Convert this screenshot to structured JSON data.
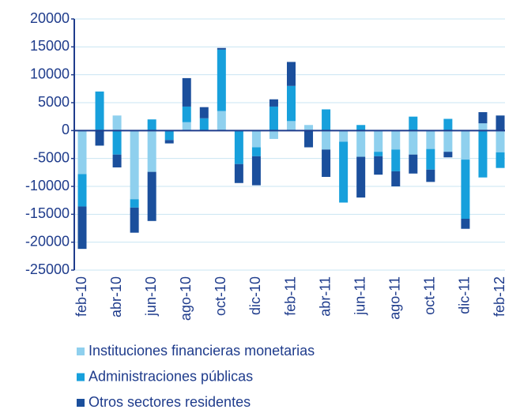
{
  "chart_data": {
    "type": "bar",
    "stacked": true,
    "categories": [
      "feb-10",
      null,
      "abr-10",
      null,
      "jun-10",
      null,
      "ago-10",
      null,
      "oct-10",
      null,
      "dic-10",
      null,
      "feb-11",
      null,
      "abr-11",
      null,
      "jun-11",
      null,
      "ago-11",
      null,
      "oct-11",
      null,
      "dic-11",
      null,
      "feb-12"
    ],
    "series": [
      {
        "name": "Instituciones financieras monetarias",
        "color": "#8fd0ee",
        "values": [
          -7800,
          0,
          2700,
          -12300,
          -7400,
          0,
          1500,
          0,
          3500,
          0,
          -3000,
          -1500,
          1700,
          1000,
          -3400,
          -2000,
          -4700,
          -3800,
          -3400,
          -4300,
          -3300,
          -3800,
          -5200,
          1300,
          -3900
        ]
      },
      {
        "name": "Administraciones públicas",
        "color": "#17a0dc",
        "values": [
          -5800,
          7000,
          -4300,
          -1500,
          2000,
          -1700,
          2800,
          2200,
          11000,
          -6000,
          -1600,
          4300,
          6300,
          0,
          3800,
          -10900,
          1000,
          -800,
          -3900,
          2500,
          -3700,
          2100,
          -10600,
          -8400,
          -2800
        ]
      },
      {
        "name": "Otros sectores residentes",
        "color": "#1b4f9c",
        "values": [
          -7600,
          -2700,
          -2300,
          -4500,
          -8800,
          -600,
          5100,
          2000,
          300,
          -3400,
          -5200,
          1300,
          4300,
          -3000,
          -4900,
          0,
          -7300,
          -3300,
          -2700,
          -3400,
          -2200,
          -1000,
          -1800,
          2000,
          2700
        ]
      }
    ],
    "ylim": [
      -25000,
      20000
    ],
    "yticks": [
      -25000,
      -20000,
      -15000,
      -10000,
      -5000,
      0,
      5000,
      10000,
      15000,
      20000
    ],
    "grid": true
  }
}
